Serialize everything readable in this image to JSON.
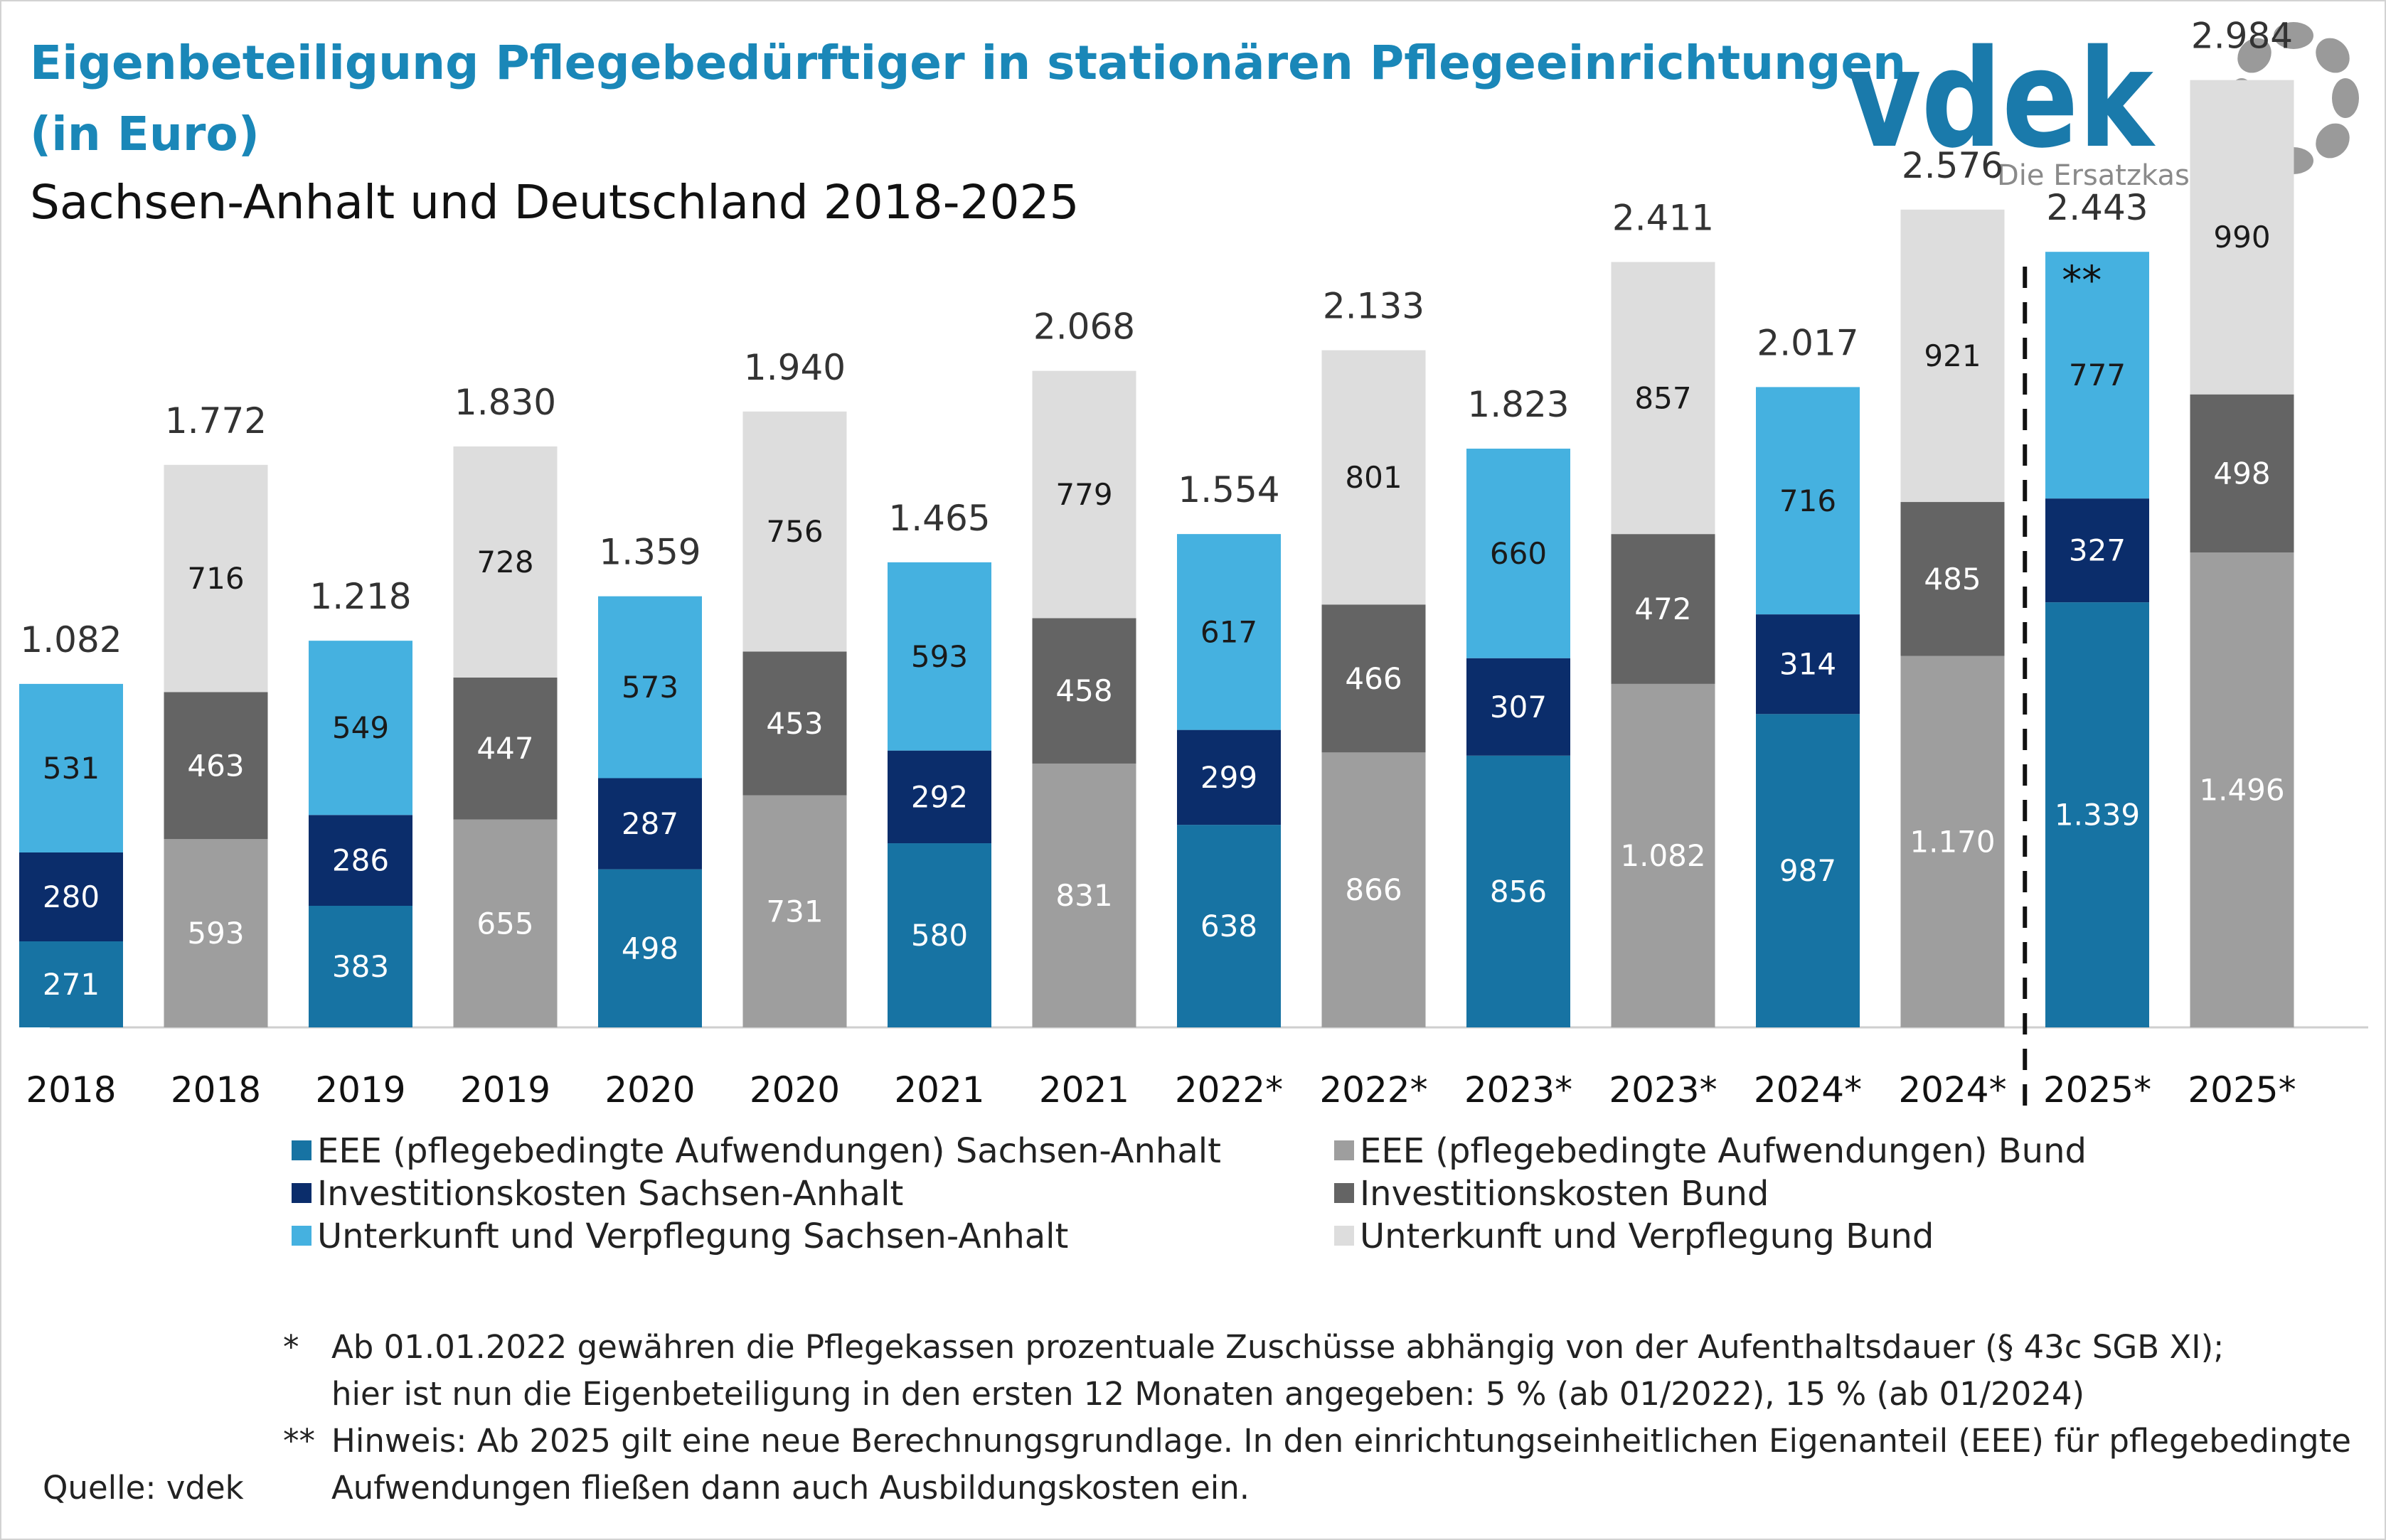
{
  "header": {
    "title_line1": "Eigenbeteiligung Pflegebedürftiger in stationären Pflegeeinrichtungen",
    "title_line2": "(in Euro)",
    "subtitle": "Sachsen-Anhalt und Deutschland 2018-2025"
  },
  "logo": {
    "text": "vdek",
    "tagline": "Die Ersatzkassen"
  },
  "colors": {
    "title": "#1a87b8",
    "eee_sa": "#1773a3",
    "invest_sa": "#0b2d6b",
    "unterkunft_sa": "#45b1e0",
    "eee_bund": "#9e9e9e",
    "invest_bund": "#646464",
    "unterkunft_bund": "#dddddd",
    "logo_blue": "#1a7aab",
    "logo_gray": "#9a9a9a"
  },
  "chart_data": {
    "type": "bar",
    "stacked": true,
    "categories": [
      "2018",
      "2018",
      "2019",
      "2019",
      "2020",
      "2020",
      "2021",
      "2021",
      "2022*",
      "2022*",
      "2023*",
      "2023*",
      "2024*",
      "2024*",
      "2025*",
      "2025*"
    ],
    "region": [
      "Sachsen-Anhalt",
      "Bund",
      "Sachsen-Anhalt",
      "Bund",
      "Sachsen-Anhalt",
      "Bund",
      "Sachsen-Anhalt",
      "Bund",
      "Sachsen-Anhalt",
      "Bund",
      "Sachsen-Anhalt",
      "Bund",
      "Sachsen-Anhalt",
      "Bund",
      "Sachsen-Anhalt",
      "Bund"
    ],
    "segments": {
      "eee": [
        271,
        593,
        383,
        655,
        498,
        731,
        580,
        831,
        638,
        866,
        856,
        1082,
        987,
        1170,
        1339,
        1496
      ],
      "investition": [
        280,
        463,
        286,
        447,
        287,
        453,
        292,
        458,
        299,
        466,
        307,
        472,
        314,
        485,
        327,
        498
      ],
      "unterkunft": [
        531,
        716,
        549,
        728,
        573,
        756,
        593,
        779,
        617,
        801,
        660,
        857,
        716,
        921,
        777,
        990
      ]
    },
    "segment_labels": {
      "eee": [
        "271",
        "593",
        "383",
        "655",
        "498",
        "731",
        "580",
        "831",
        "638",
        "866",
        "856",
        "1.082",
        "987",
        "1.170",
        "1.339",
        "1.496"
      ],
      "investition": [
        "280",
        "463",
        "286",
        "447",
        "287",
        "453",
        "292",
        "458",
        "299",
        "466",
        "307",
        "472",
        "314",
        "485",
        "327",
        "498"
      ],
      "unterkunft": [
        "531",
        "716",
        "549",
        "728",
        "573",
        "756",
        "593",
        "779",
        "617",
        "801",
        "660",
        "857",
        "716",
        "921",
        "777",
        "990"
      ]
    },
    "totals": [
      1082,
      1772,
      1218,
      1830,
      1359,
      1940,
      1465,
      2068,
      1554,
      2133,
      1823,
      2411,
      2017,
      2576,
      2443,
      2984
    ],
    "total_labels": [
      "1.082",
      "1.772",
      "1.218",
      "1.830",
      "1.359",
      "1.940",
      "1.465",
      "2.068",
      "1.554",
      "2.133",
      "1.823",
      "2.411",
      "2.017",
      "2.576",
      "2.443",
      "2.984"
    ],
    "series": [
      {
        "name": "EEE (pflegebedingte Aufwendungen) Sachsen-Anhalt",
        "color_key": "eee_sa"
      },
      {
        "name": "Investitionskosten Sachsen-Anhalt",
        "color_key": "invest_sa"
      },
      {
        "name": "Unterkunft und Verpflegung Sachsen-Anhalt",
        "color_key": "unterkunft_sa"
      },
      {
        "name": "EEE (pflegebedingte Aufwendungen) Bund",
        "color_key": "eee_bund"
      },
      {
        "name": "Investitionskosten Bund",
        "color_key": "invest_bund"
      },
      {
        "name": "Unterkunft und Verpflegung Bund",
        "color_key": "unterkunft_bund"
      }
    ],
    "ylim": [
      0,
      3400
    ],
    "grid": false,
    "divider_marker": "**",
    "divider_before_category_index": 14
  },
  "footnotes": {
    "note1_marker": "*",
    "note1_line1": "Ab 01.01.2022 gewähren die Pflegekassen prozentuale Zuschüsse abhängig von der Aufenthaltsdauer (§ 43c SGB XI);",
    "note1_line2": "hier ist nun die Eigenbeteiligung in den ersten 12 Monaten angegeben: 5 % (ab 01/2022), 15 % (ab 01/2024)",
    "note2_marker": "**",
    "note2_line1": "Hinweis: Ab 2025 gilt eine neue Berechnungsgrundlage. In den einrichtungseinheitlichen Eigenanteil (EEE) für pflegebedingte",
    "note2_line2": "Aufwendungen fließen dann auch Ausbildungskosten ein."
  },
  "source": "Quelle: vdek"
}
